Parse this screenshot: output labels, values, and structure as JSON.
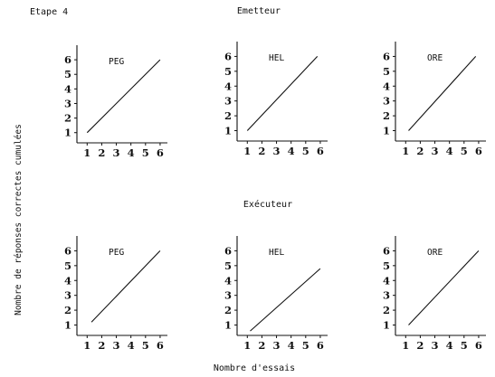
{
  "figure": {
    "step_label": "Etape 4",
    "y_axis_label": "Nombre de réponses correctes cumulées",
    "x_axis_label": "Nombre d'essais"
  },
  "groups": [
    {
      "title": "Emetteur"
    },
    {
      "title": "Exécuteur"
    }
  ],
  "chart_data": [
    {
      "type": "line",
      "group": "Emetteur",
      "title": "PEG",
      "xlabel": "",
      "ylabel": "",
      "x_ticks": [
        1,
        2,
        3,
        4,
        5,
        6
      ],
      "y_ticks": [
        1,
        2,
        3,
        4,
        5,
        6
      ],
      "xlim": [
        0.3,
        6.5
      ],
      "ylim": [
        0.3,
        7.0
      ],
      "series": [
        {
          "x": [
            1,
            6
          ],
          "y": [
            1,
            6
          ]
        }
      ]
    },
    {
      "type": "line",
      "group": "Emetteur",
      "title": "HEL",
      "xlabel": "",
      "ylabel": "",
      "x_ticks": [
        1,
        2,
        3,
        4,
        5,
        6
      ],
      "y_ticks": [
        1,
        2,
        3,
        4,
        5,
        6
      ],
      "xlim": [
        0.3,
        6.5
      ],
      "ylim": [
        0.3,
        7.0
      ],
      "series": [
        {
          "x": [
            1,
            5.8
          ],
          "y": [
            1,
            6
          ]
        }
      ]
    },
    {
      "type": "line",
      "group": "Emetteur",
      "title": "ORE",
      "xlabel": "",
      "ylabel": "",
      "x_ticks": [
        1,
        2,
        3,
        4,
        5,
        6
      ],
      "y_ticks": [
        1,
        2,
        3,
        4,
        5,
        6
      ],
      "xlim": [
        0.3,
        6.5
      ],
      "ylim": [
        0.3,
        7.0
      ],
      "series": [
        {
          "x": [
            1.2,
            5.8
          ],
          "y": [
            1,
            6
          ]
        }
      ]
    },
    {
      "type": "line",
      "group": "Exécuteur",
      "title": "PEG",
      "xlabel": "",
      "ylabel": "",
      "x_ticks": [
        1,
        2,
        3,
        4,
        5,
        6
      ],
      "y_ticks": [
        1,
        2,
        3,
        4,
        5,
        6
      ],
      "xlim": [
        0.3,
        6.5
      ],
      "ylim": [
        0.3,
        7.0
      ],
      "series": [
        {
          "x": [
            1.3,
            6
          ],
          "y": [
            1.2,
            6
          ]
        }
      ]
    },
    {
      "type": "line",
      "group": "Exécuteur",
      "title": "HEL",
      "xlabel": "",
      "ylabel": "",
      "x_ticks": [
        1,
        2,
        3,
        4,
        5,
        6
      ],
      "y_ticks": [
        1,
        2,
        3,
        4,
        5,
        6
      ],
      "xlim": [
        0.3,
        6.5
      ],
      "ylim": [
        0.3,
        7.0
      ],
      "series": [
        {
          "x": [
            1.2,
            6
          ],
          "y": [
            0.6,
            4.8
          ]
        }
      ]
    },
    {
      "type": "line",
      "group": "Exécuteur",
      "title": "ORE",
      "xlabel": "",
      "ylabel": "",
      "x_ticks": [
        1,
        2,
        3,
        4,
        5,
        6
      ],
      "y_ticks": [
        1,
        2,
        3,
        4,
        5,
        6
      ],
      "xlim": [
        0.3,
        6.5
      ],
      "ylim": [
        0.3,
        7.0
      ],
      "series": [
        {
          "x": [
            1.2,
            6
          ],
          "y": [
            1,
            6
          ]
        }
      ]
    }
  ]
}
